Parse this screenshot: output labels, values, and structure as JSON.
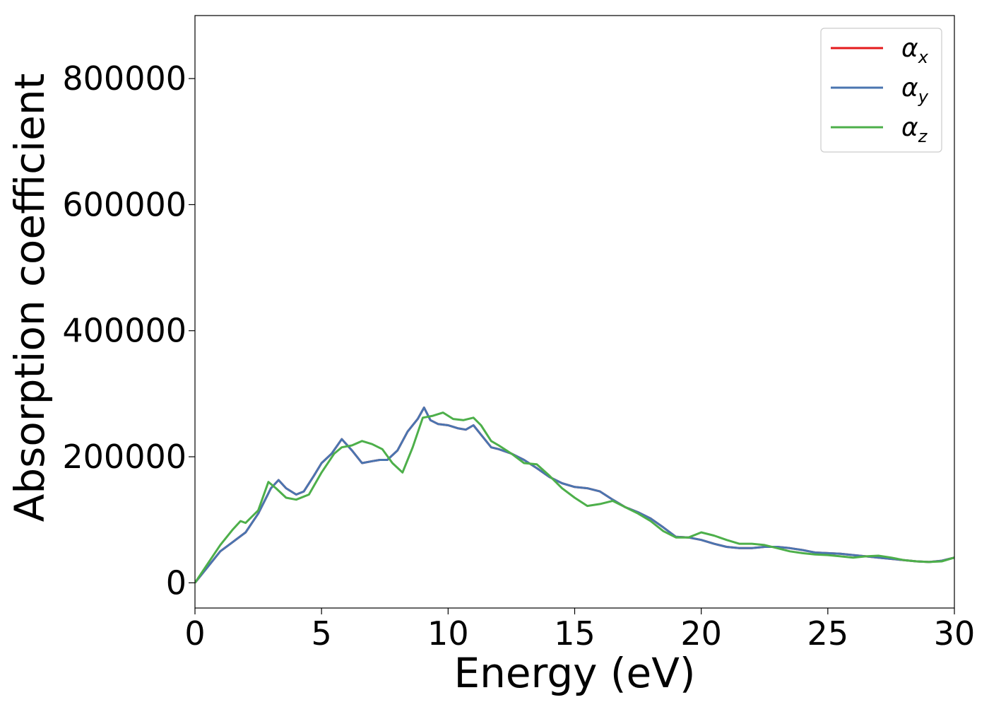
{
  "chart_data": {
    "type": "line",
    "title": "",
    "xlabel": "Energy (eV)",
    "ylabel": "Absorption coefficient",
    "xlim": [
      0,
      30
    ],
    "ylim": [
      -40000,
      900000
    ],
    "xticks": [
      0,
      5,
      10,
      15,
      20,
      25,
      30
    ],
    "yticks": [
      0,
      200000,
      400000,
      600000,
      800000
    ],
    "grid": false,
    "legend_position": "top-right",
    "series": [
      {
        "name": "α",
        "subscript": "x",
        "color": "#e41a1c",
        "x": [
          0,
          0.5,
          1.0,
          1.5,
          2.0,
          2.5,
          3.0,
          3.3,
          3.6,
          4.0,
          4.3,
          4.7,
          5.0,
          5.4,
          5.8,
          6.2,
          6.6,
          7.0,
          7.3,
          7.6,
          8.0,
          8.4,
          8.8,
          9.05,
          9.3,
          9.6,
          10.0,
          10.4,
          10.7,
          11.0,
          11.3,
          11.7,
          12.0,
          12.5,
          13.0,
          13.5,
          14.0,
          14.5,
          15.0,
          15.5,
          16.0,
          16.5,
          17.0,
          17.5,
          18.0,
          18.5,
          19.0,
          19.5,
          20.0,
          20.5,
          21.0,
          21.5,
          22.0,
          22.5,
          23.0,
          23.5,
          24.0,
          24.5,
          25.0,
          25.5,
          26.0,
          26.5,
          27.0,
          27.5,
          28.0,
          28.5,
          29.0,
          29.5,
          30.0
        ],
        "y": [
          0,
          25000,
          50000,
          65000,
          80000,
          110000,
          150000,
          163000,
          150000,
          140000,
          145000,
          170000,
          190000,
          205000,
          228000,
          210000,
          190000,
          193000,
          195000,
          195000,
          210000,
          240000,
          260000,
          278000,
          258000,
          252000,
          250000,
          245000,
          243000,
          250000,
          235000,
          215000,
          212000,
          205000,
          195000,
          182000,
          168000,
          158000,
          152000,
          150000,
          145000,
          132000,
          120000,
          112000,
          102000,
          88000,
          73000,
          72000,
          68000,
          62000,
          57000,
          55000,
          55000,
          57000,
          57000,
          55000,
          52000,
          48000,
          47000,
          46000,
          44000,
          42000,
          40000,
          38000,
          36000,
          34000,
          33000,
          35000,
          40000
        ]
      },
      {
        "name": "α",
        "subscript": "y",
        "color": "#4a75b0",
        "x": [
          0,
          0.5,
          1.0,
          1.5,
          2.0,
          2.5,
          3.0,
          3.3,
          3.6,
          4.0,
          4.3,
          4.7,
          5.0,
          5.4,
          5.8,
          6.2,
          6.6,
          7.0,
          7.3,
          7.6,
          8.0,
          8.4,
          8.8,
          9.05,
          9.3,
          9.6,
          10.0,
          10.4,
          10.7,
          11.0,
          11.3,
          11.7,
          12.0,
          12.5,
          13.0,
          13.5,
          14.0,
          14.5,
          15.0,
          15.5,
          16.0,
          16.5,
          17.0,
          17.5,
          18.0,
          18.5,
          19.0,
          19.5,
          20.0,
          20.5,
          21.0,
          21.5,
          22.0,
          22.5,
          23.0,
          23.5,
          24.0,
          24.5,
          25.0,
          25.5,
          26.0,
          26.5,
          27.0,
          27.5,
          28.0,
          28.5,
          29.0,
          29.5,
          30.0
        ],
        "y": [
          0,
          25000,
          50000,
          65000,
          80000,
          110000,
          150000,
          163000,
          150000,
          140000,
          145000,
          170000,
          190000,
          205000,
          228000,
          210000,
          190000,
          193000,
          195000,
          195000,
          210000,
          240000,
          260000,
          278000,
          258000,
          252000,
          250000,
          245000,
          243000,
          250000,
          235000,
          215000,
          212000,
          205000,
          195000,
          182000,
          168000,
          158000,
          152000,
          150000,
          145000,
          132000,
          120000,
          112000,
          102000,
          88000,
          73000,
          72000,
          68000,
          62000,
          57000,
          55000,
          55000,
          57000,
          57000,
          55000,
          52000,
          48000,
          47000,
          46000,
          44000,
          42000,
          40000,
          38000,
          36000,
          34000,
          33000,
          35000,
          40000
        ]
      },
      {
        "name": "α",
        "subscript": "z",
        "color": "#4daf4a",
        "x": [
          0,
          0.5,
          1.0,
          1.5,
          1.8,
          2.0,
          2.5,
          2.9,
          3.2,
          3.6,
          4.0,
          4.5,
          5.0,
          5.5,
          5.8,
          6.2,
          6.6,
          7.0,
          7.4,
          7.8,
          8.2,
          8.6,
          9.0,
          9.4,
          9.8,
          10.2,
          10.6,
          11.0,
          11.3,
          11.7,
          12.0,
          12.5,
          13.0,
          13.5,
          14.0,
          14.5,
          15.0,
          15.5,
          16.0,
          16.5,
          17.0,
          17.5,
          18.0,
          18.5,
          19.0,
          19.5,
          20.0,
          20.5,
          21.0,
          21.5,
          22.0,
          22.5,
          23.0,
          23.5,
          24.0,
          24.5,
          25.0,
          25.5,
          26.0,
          26.5,
          27.0,
          27.5,
          28.0,
          28.5,
          29.0,
          29.5,
          30.0
        ],
        "y": [
          0,
          30000,
          60000,
          85000,
          98000,
          95000,
          115000,
          160000,
          150000,
          135000,
          132000,
          140000,
          175000,
          205000,
          215000,
          218000,
          225000,
          220000,
          212000,
          190000,
          175000,
          215000,
          262000,
          265000,
          270000,
          260000,
          258000,
          262000,
          250000,
          225000,
          218000,
          205000,
          190000,
          188000,
          170000,
          150000,
          135000,
          122000,
          125000,
          130000,
          120000,
          110000,
          98000,
          82000,
          72000,
          72000,
          80000,
          75000,
          68000,
          62000,
          62000,
          60000,
          55000,
          50000,
          47000,
          45000,
          44000,
          42000,
          40000,
          42000,
          43000,
          40000,
          36000,
          34000,
          33000,
          34000,
          40000
        ]
      }
    ]
  }
}
